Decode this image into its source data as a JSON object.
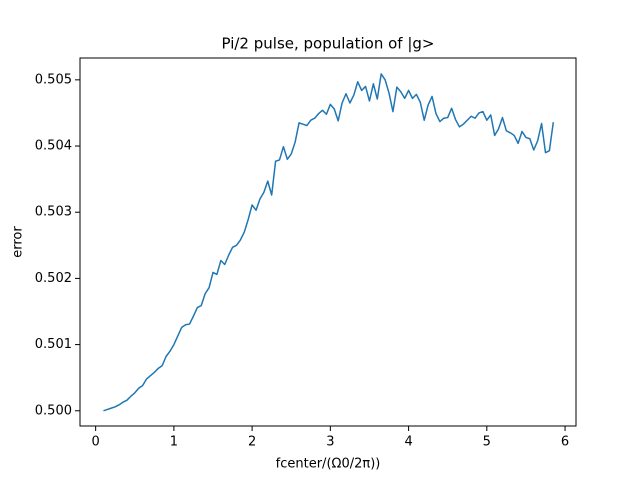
{
  "chart_data": {
    "type": "line",
    "title": "Pi/2 pulse, population of |g>",
    "x_label": "fcenter/(Ω0/2π))",
    "y_label": "error",
    "x": [
      0.1,
      0.15,
      0.2,
      0.25,
      0.3,
      0.35,
      0.4,
      0.45,
      0.5,
      0.55,
      0.6,
      0.65,
      0.7,
      0.75,
      0.8,
      0.85,
      0.9,
      0.95,
      1.0,
      1.05,
      1.1,
      1.15,
      1.2,
      1.25,
      1.3,
      1.35,
      1.4,
      1.45,
      1.5,
      1.55,
      1.6,
      1.65,
      1.7,
      1.75,
      1.8,
      1.85,
      1.9,
      1.95,
      2.0,
      2.05,
      2.1,
      2.15,
      2.2,
      2.25,
      2.3,
      2.35,
      2.4,
      2.45,
      2.5,
      2.55,
      2.6,
      2.65,
      2.7,
      2.75,
      2.8,
      2.85,
      2.9,
      2.95,
      3.0,
      3.05,
      3.1,
      3.15,
      3.2,
      3.25,
      3.3,
      3.35,
      3.4,
      3.45,
      3.5,
      3.55,
      3.6,
      3.65,
      3.7,
      3.75,
      3.8,
      3.85,
      3.9,
      3.95,
      4.0,
      4.05,
      4.1,
      4.15,
      4.2,
      4.25,
      4.3,
      4.35,
      4.4,
      4.45,
      4.5,
      4.55,
      4.6,
      4.65,
      4.7,
      4.75,
      4.8,
      4.85,
      4.9,
      4.95,
      5.0,
      5.05,
      5.1,
      5.15,
      5.2,
      5.25,
      5.3,
      5.35,
      5.4,
      5.45,
      5.5,
      5.55,
      5.6,
      5.65,
      5.7,
      5.75,
      5.8,
      5.85
    ],
    "series": [
      {
        "color": "#1f77b4",
        "values": [
          0.5,
          0.50002,
          0.50004,
          0.50006,
          0.50009,
          0.50013,
          0.50016,
          0.50022,
          0.50027,
          0.50034,
          0.50038,
          0.50048,
          0.50053,
          0.50058,
          0.50064,
          0.50068,
          0.50082,
          0.5009,
          0.501,
          0.50113,
          0.50126,
          0.5013,
          0.50131,
          0.50143,
          0.50156,
          0.50159,
          0.50177,
          0.50186,
          0.50209,
          0.50206,
          0.50227,
          0.50221,
          0.50235,
          0.50247,
          0.5025,
          0.50258,
          0.5027,
          0.50289,
          0.50311,
          0.50303,
          0.5032,
          0.5033,
          0.50347,
          0.50326,
          0.50377,
          0.50379,
          0.50399,
          0.5038,
          0.50388,
          0.50406,
          0.50435,
          0.50433,
          0.50431,
          0.50439,
          0.50442,
          0.50449,
          0.50454,
          0.50448,
          0.50463,
          0.50456,
          0.50438,
          0.50465,
          0.50479,
          0.50465,
          0.50477,
          0.50497,
          0.50484,
          0.5049,
          0.50468,
          0.50494,
          0.50471,
          0.50509,
          0.505,
          0.5048,
          0.50452,
          0.50489,
          0.50482,
          0.50472,
          0.50484,
          0.50472,
          0.50478,
          0.50466,
          0.50439,
          0.50462,
          0.50475,
          0.50449,
          0.50437,
          0.50442,
          0.50443,
          0.50457,
          0.5044,
          0.50429,
          0.50433,
          0.50439,
          0.50445,
          0.50442,
          0.5045,
          0.50452,
          0.50439,
          0.50447,
          0.50416,
          0.50426,
          0.50443,
          0.50423,
          0.5042,
          0.50416,
          0.50404,
          0.50422,
          0.50413,
          0.50411,
          0.50394,
          0.50408,
          0.50434,
          0.5039,
          0.50393,
          0.50436
        ]
      }
    ],
    "xlim": [
      -0.2,
      6.14
    ],
    "ylim": [
      0.49977,
      0.50533
    ],
    "xticks": [
      0,
      1,
      2,
      3,
      4,
      5,
      6
    ],
    "yticks": [
      {
        "value": 0.5,
        "label": "0.500"
      },
      {
        "value": 0.501,
        "label": "0.501"
      },
      {
        "value": 0.502,
        "label": "0.502"
      },
      {
        "value": 0.503,
        "label": "0.503"
      },
      {
        "value": 0.504,
        "label": "0.504"
      },
      {
        "value": 0.505,
        "label": "0.505"
      }
    ]
  }
}
